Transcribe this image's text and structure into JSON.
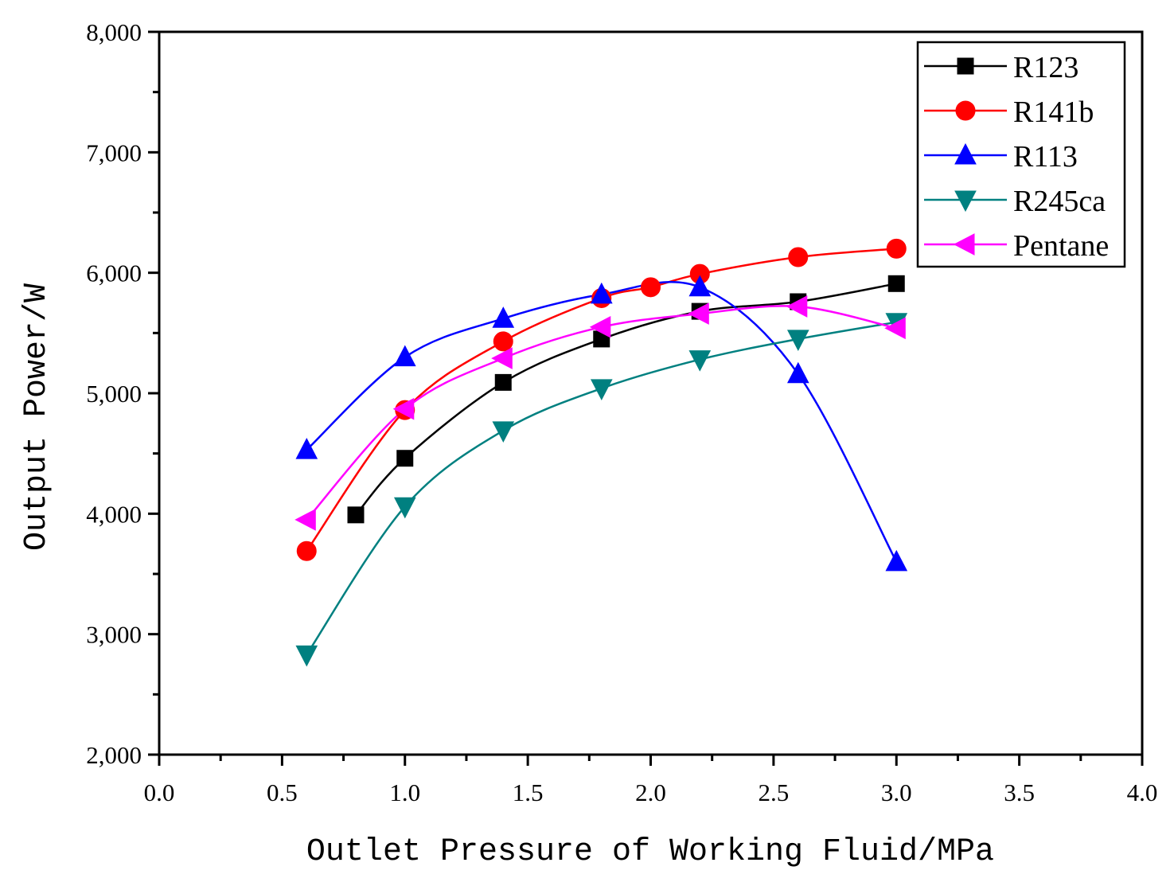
{
  "chart_data": {
    "type": "line",
    "title": "",
    "xlabel": "Outlet Pressure of Working Fluid/MPa",
    "ylabel": "Output Power/W",
    "xlim": [
      0.0,
      4.0
    ],
    "ylim": [
      2000,
      8000
    ],
    "x_ticks": [
      0.0,
      0.5,
      1.0,
      1.5,
      2.0,
      2.5,
      3.0,
      3.5,
      4.0
    ],
    "x_tick_labels": [
      "0.0",
      "0.5",
      "1.0",
      "1.5",
      "2.0",
      "2.5",
      "3.0",
      "3.5",
      "4.0"
    ],
    "y_ticks": [
      2000,
      3000,
      4000,
      5000,
      6000,
      7000,
      8000
    ],
    "y_tick_labels": [
      "2,000",
      "3,000",
      "4,000",
      "5,000",
      "6,000",
      "7,000",
      "8,000"
    ],
    "grid": false,
    "legend_position": "top-right",
    "series": [
      {
        "name": "R123",
        "marker": "square",
        "color": "#000000",
        "x": [
          0.8,
          1.0,
          1.4,
          1.8,
          2.2,
          2.6,
          3.0
        ],
        "values": [
          3990,
          4460,
          5090,
          5450,
          5680,
          5760,
          5910
        ]
      },
      {
        "name": "R141b",
        "marker": "circle",
        "color": "#ff0000",
        "x": [
          0.6,
          1.0,
          1.4,
          1.8,
          2.0,
          2.2,
          2.6,
          3.0
        ],
        "values": [
          3690,
          4860,
          5430,
          5790,
          5880,
          5990,
          6130,
          6200
        ]
      },
      {
        "name": "R113",
        "marker": "triangle-up",
        "color": "#0000ff",
        "x": [
          0.6,
          1.0,
          1.4,
          1.8,
          2.2,
          2.6,
          3.0
        ],
        "values": [
          4530,
          5300,
          5620,
          5820,
          5880,
          5160,
          3600
        ]
      },
      {
        "name": "R245ca",
        "marker": "triangle-down",
        "color": "#008080",
        "x": [
          0.6,
          1.0,
          1.4,
          1.8,
          2.2,
          2.6,
          3.0
        ],
        "values": [
          2830,
          4060,
          4690,
          5040,
          5280,
          5450,
          5590
        ]
      },
      {
        "name": "Pentane",
        "marker": "triangle-left",
        "color": "#ff00ff",
        "x": [
          0.6,
          1.0,
          1.4,
          1.8,
          2.2,
          2.6,
          3.0
        ],
        "values": [
          3950,
          4870,
          5290,
          5550,
          5660,
          5720,
          5540
        ]
      }
    ]
  }
}
